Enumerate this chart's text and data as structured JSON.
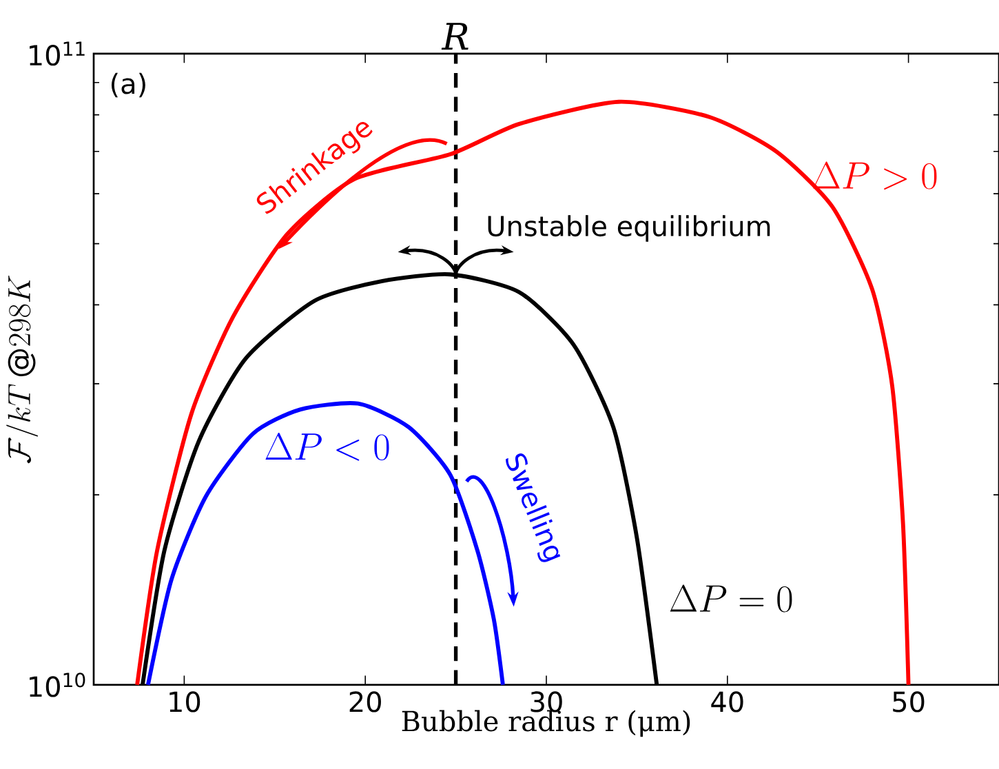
{
  "chart_data": {
    "type": "line",
    "xlabel": "Bubble radius r (μm)",
    "ylabel": "\\mathcal{F}/kT\\,@298K",
    "log": "y",
    "xlim": [
      5,
      55
    ],
    "xticks": [
      10,
      20,
      30,
      40,
      50
    ],
    "ylim": [
      10000000000.0,
      100000000000.0
    ],
    "yticks": [
      {
        "value": 10000000000.0,
        "label": "10$^{10}$"
      },
      {
        "value": 100000000000.0,
        "label": "10$^{11}$"
      }
    ],
    "grid": false,
    "marker": "none",
    "line_style": "solid",
    "series": [
      {
        "name": "\\Delta P > 0",
        "color": "#ff0000",
        "x": [
          7.4,
          8.5,
          10.4,
          12.7,
          15.7,
          19.4,
          24.7,
          28.5,
          34.0,
          39.0,
          42.7,
          45.8,
          48.0,
          49.1,
          49.7,
          50.0
        ],
        "values": [
          10000000000.0,
          16300000000.0,
          26900000000.0,
          38300000000.0,
          51800000000.0,
          63300000000.0,
          69300000000.0,
          77400000000.0,
          83900000000.0,
          79400000000.0,
          70000000000.0,
          57200000000.0,
          42300000000.0,
          29800000000.0,
          18000000000.0,
          10000000000.0
        ]
      },
      {
        "name": "\\Delta P = 0",
        "color": "#000000",
        "x": [
          7.7,
          8.9,
          10.8,
          13.4,
          17.2,
          20.9,
          24.7,
          28.5,
          31.5,
          33.7,
          35.0,
          36.1
        ],
        "values": [
          10000000000.0,
          16300000000.0,
          24300000000.0,
          32900000000.0,
          40600000000.0,
          43600000000.0,
          44700000000.0,
          41900000000.0,
          34600000000.0,
          25600000000.0,
          17100000000.0,
          10000000000.0
        ]
      },
      {
        "name": "\\Delta P < 0",
        "color": "#0000ff",
        "x": [
          8.0,
          9.3,
          11.2,
          13.8,
          16.4,
          19.6,
          22.4,
          24.7,
          26.2,
          27.1,
          27.6
        ],
        "values": [
          10000000000.0,
          14700000000.0,
          19900000000.0,
          25000000000.0,
          27300000000.0,
          27900000000.0,
          25600000000.0,
          21500000000.0,
          16300000000.0,
          12700000000.0,
          10000000000.0
        ]
      }
    ],
    "ref_lines": [
      {
        "axis": "x",
        "value": 25,
        "label": "R",
        "color": "#000000",
        "line_style": "dashed"
      }
    ],
    "annotations": [
      "(a)",
      "Shrinkage",
      {
        "text": "Unstable equilibrium",
        "x": 25,
        "y": 44700000000.0
      },
      "Swelling"
    ]
  }
}
